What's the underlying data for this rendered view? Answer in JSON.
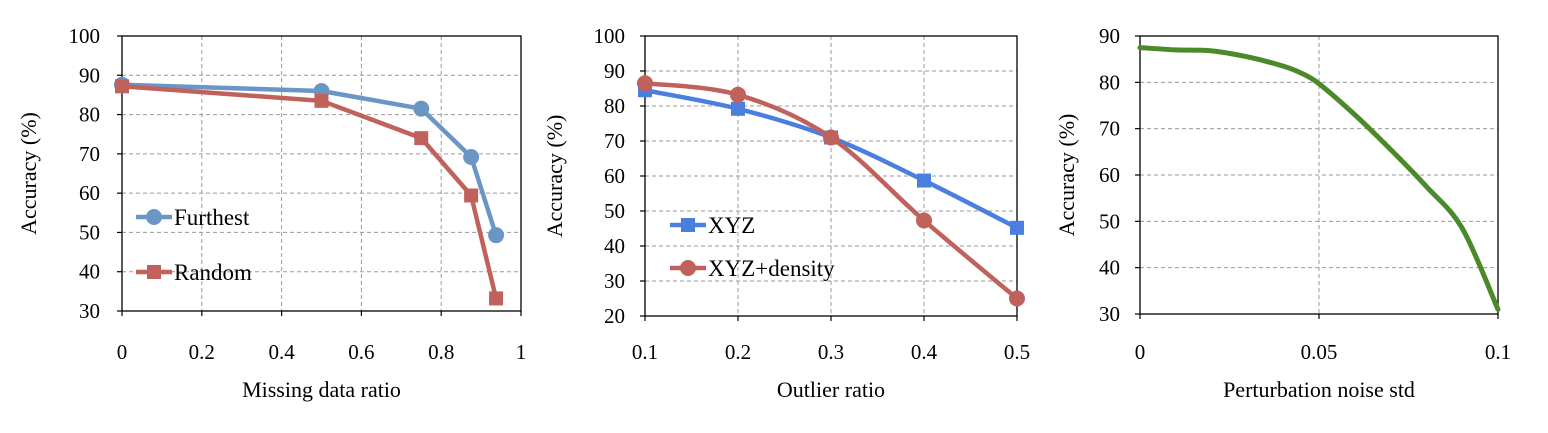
{
  "chart_data": [
    {
      "type": "line",
      "xlabel": "Missing data ratio",
      "ylabel": "Accuracy (%)",
      "xlim": [
        0,
        1
      ],
      "ylim": [
        30,
        100
      ],
      "xticks": [
        0,
        0.2,
        0.4,
        0.6,
        0.8,
        1
      ],
      "xtick_labels": [
        "0",
        "0.2",
        "0.4",
        "0.6",
        "0.8",
        "1"
      ],
      "yticks": [
        30,
        40,
        50,
        60,
        70,
        80,
        90,
        100
      ],
      "grid": true,
      "legend_position": "bottom-left",
      "series": [
        {
          "name": "Furthest",
          "color": "#6a96c6",
          "marker": "circle",
          "x": [
            0,
            0.5,
            0.75,
            0.875,
            0.9375
          ],
          "y": [
            87.6,
            86.0,
            81.5,
            69.2,
            49.3
          ]
        },
        {
          "name": "Random",
          "color": "#c0615c",
          "marker": "square",
          "x": [
            0,
            0.5,
            0.75,
            0.875,
            0.9375
          ],
          "y": [
            87.2,
            83.5,
            74.0,
            59.4,
            33.2
          ]
        }
      ]
    },
    {
      "type": "line",
      "xlabel": "Outlier ratio",
      "ylabel": "Accuracy (%)",
      "xlim": [
        0.1,
        0.5
      ],
      "ylim": [
        20,
        100
      ],
      "xticks": [
        0.1,
        0.2,
        0.3,
        0.4,
        0.5
      ],
      "xtick_labels": [
        "0.1",
        "0.2",
        "0.3",
        "0.4",
        "0.5"
      ],
      "yticks": [
        20,
        30,
        40,
        50,
        60,
        70,
        80,
        90,
        100
      ],
      "grid": true,
      "legend_position": "bottom-left",
      "series": [
        {
          "name": "XYZ",
          "color": "#4a7fe0",
          "marker": "square",
          "smooth": true,
          "x": [
            0.1,
            0.2,
            0.3,
            0.4,
            0.5
          ],
          "y": [
            84.5,
            79.2,
            71.0,
            58.7,
            45.2
          ]
        },
        {
          "name": "XYZ+density",
          "color": "#c0615c",
          "marker": "circle",
          "smooth": true,
          "x": [
            0.1,
            0.2,
            0.3,
            0.4,
            0.5
          ],
          "y": [
            86.5,
            83.2,
            71.0,
            47.3,
            25.0
          ]
        }
      ]
    },
    {
      "type": "line",
      "xlabel": "Perturbation noise std",
      "ylabel": "Accuracy (%)",
      "xlim": [
        0,
        0.1
      ],
      "ylim": [
        30,
        90
      ],
      "xticks": [
        0,
        0.05,
        0.1
      ],
      "xtick_labels": [
        "0",
        "0.05",
        "0.1"
      ],
      "yticks": [
        30,
        40,
        50,
        60,
        70,
        80,
        90
      ],
      "grid": true,
      "series": [
        {
          "color": "#4a8a2a",
          "marker": "none",
          "smooth": true,
          "x": [
            0,
            0.01,
            0.02,
            0.03,
            0.04,
            0.045,
            0.05,
            0.06,
            0.07,
            0.08,
            0.09,
            0.1
          ],
          "y": [
            87.5,
            87.0,
            86.8,
            85.5,
            83.5,
            82.0,
            79.7,
            73.0,
            65.5,
            57.5,
            48.5,
            31.0
          ]
        }
      ]
    }
  ]
}
